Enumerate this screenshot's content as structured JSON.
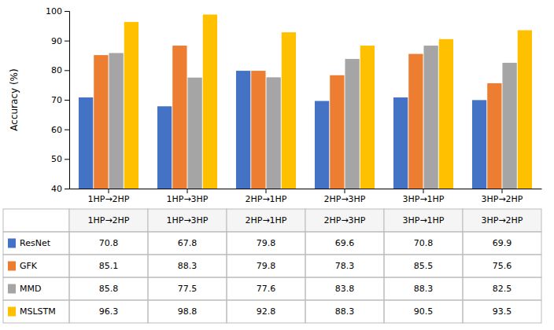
{
  "chart_data": {
    "type": "bar",
    "categories": [
      "1HP→2HP",
      "1HP→3HP",
      "2HP→1HP",
      "2HP→3HP",
      "3HP→1HP",
      "3HP→2HP"
    ],
    "series": [
      {
        "name": "ResNet",
        "color": "#4472C4",
        "values": [
          70.8,
          67.8,
          79.8,
          69.6,
          70.8,
          69.9
        ]
      },
      {
        "name": "GFK",
        "color": "#ED7D31",
        "values": [
          85.1,
          88.3,
          79.8,
          78.3,
          85.5,
          75.6
        ]
      },
      {
        "name": "MMD",
        "color": "#A5A5A5",
        "values": [
          85.8,
          77.5,
          77.6,
          83.8,
          88.3,
          82.5
        ]
      },
      {
        "name": "MSLSTM",
        "color": "#FFC000",
        "values": [
          96.3,
          98.8,
          92.8,
          88.3,
          90.5,
          93.5
        ]
      }
    ],
    "y_label": "Accuracy (%)",
    "ylim": [
      40,
      100
    ],
    "yticks": [
      40,
      50,
      60,
      70,
      80,
      90,
      100
    ],
    "grid": false,
    "legend": "bottom"
  }
}
